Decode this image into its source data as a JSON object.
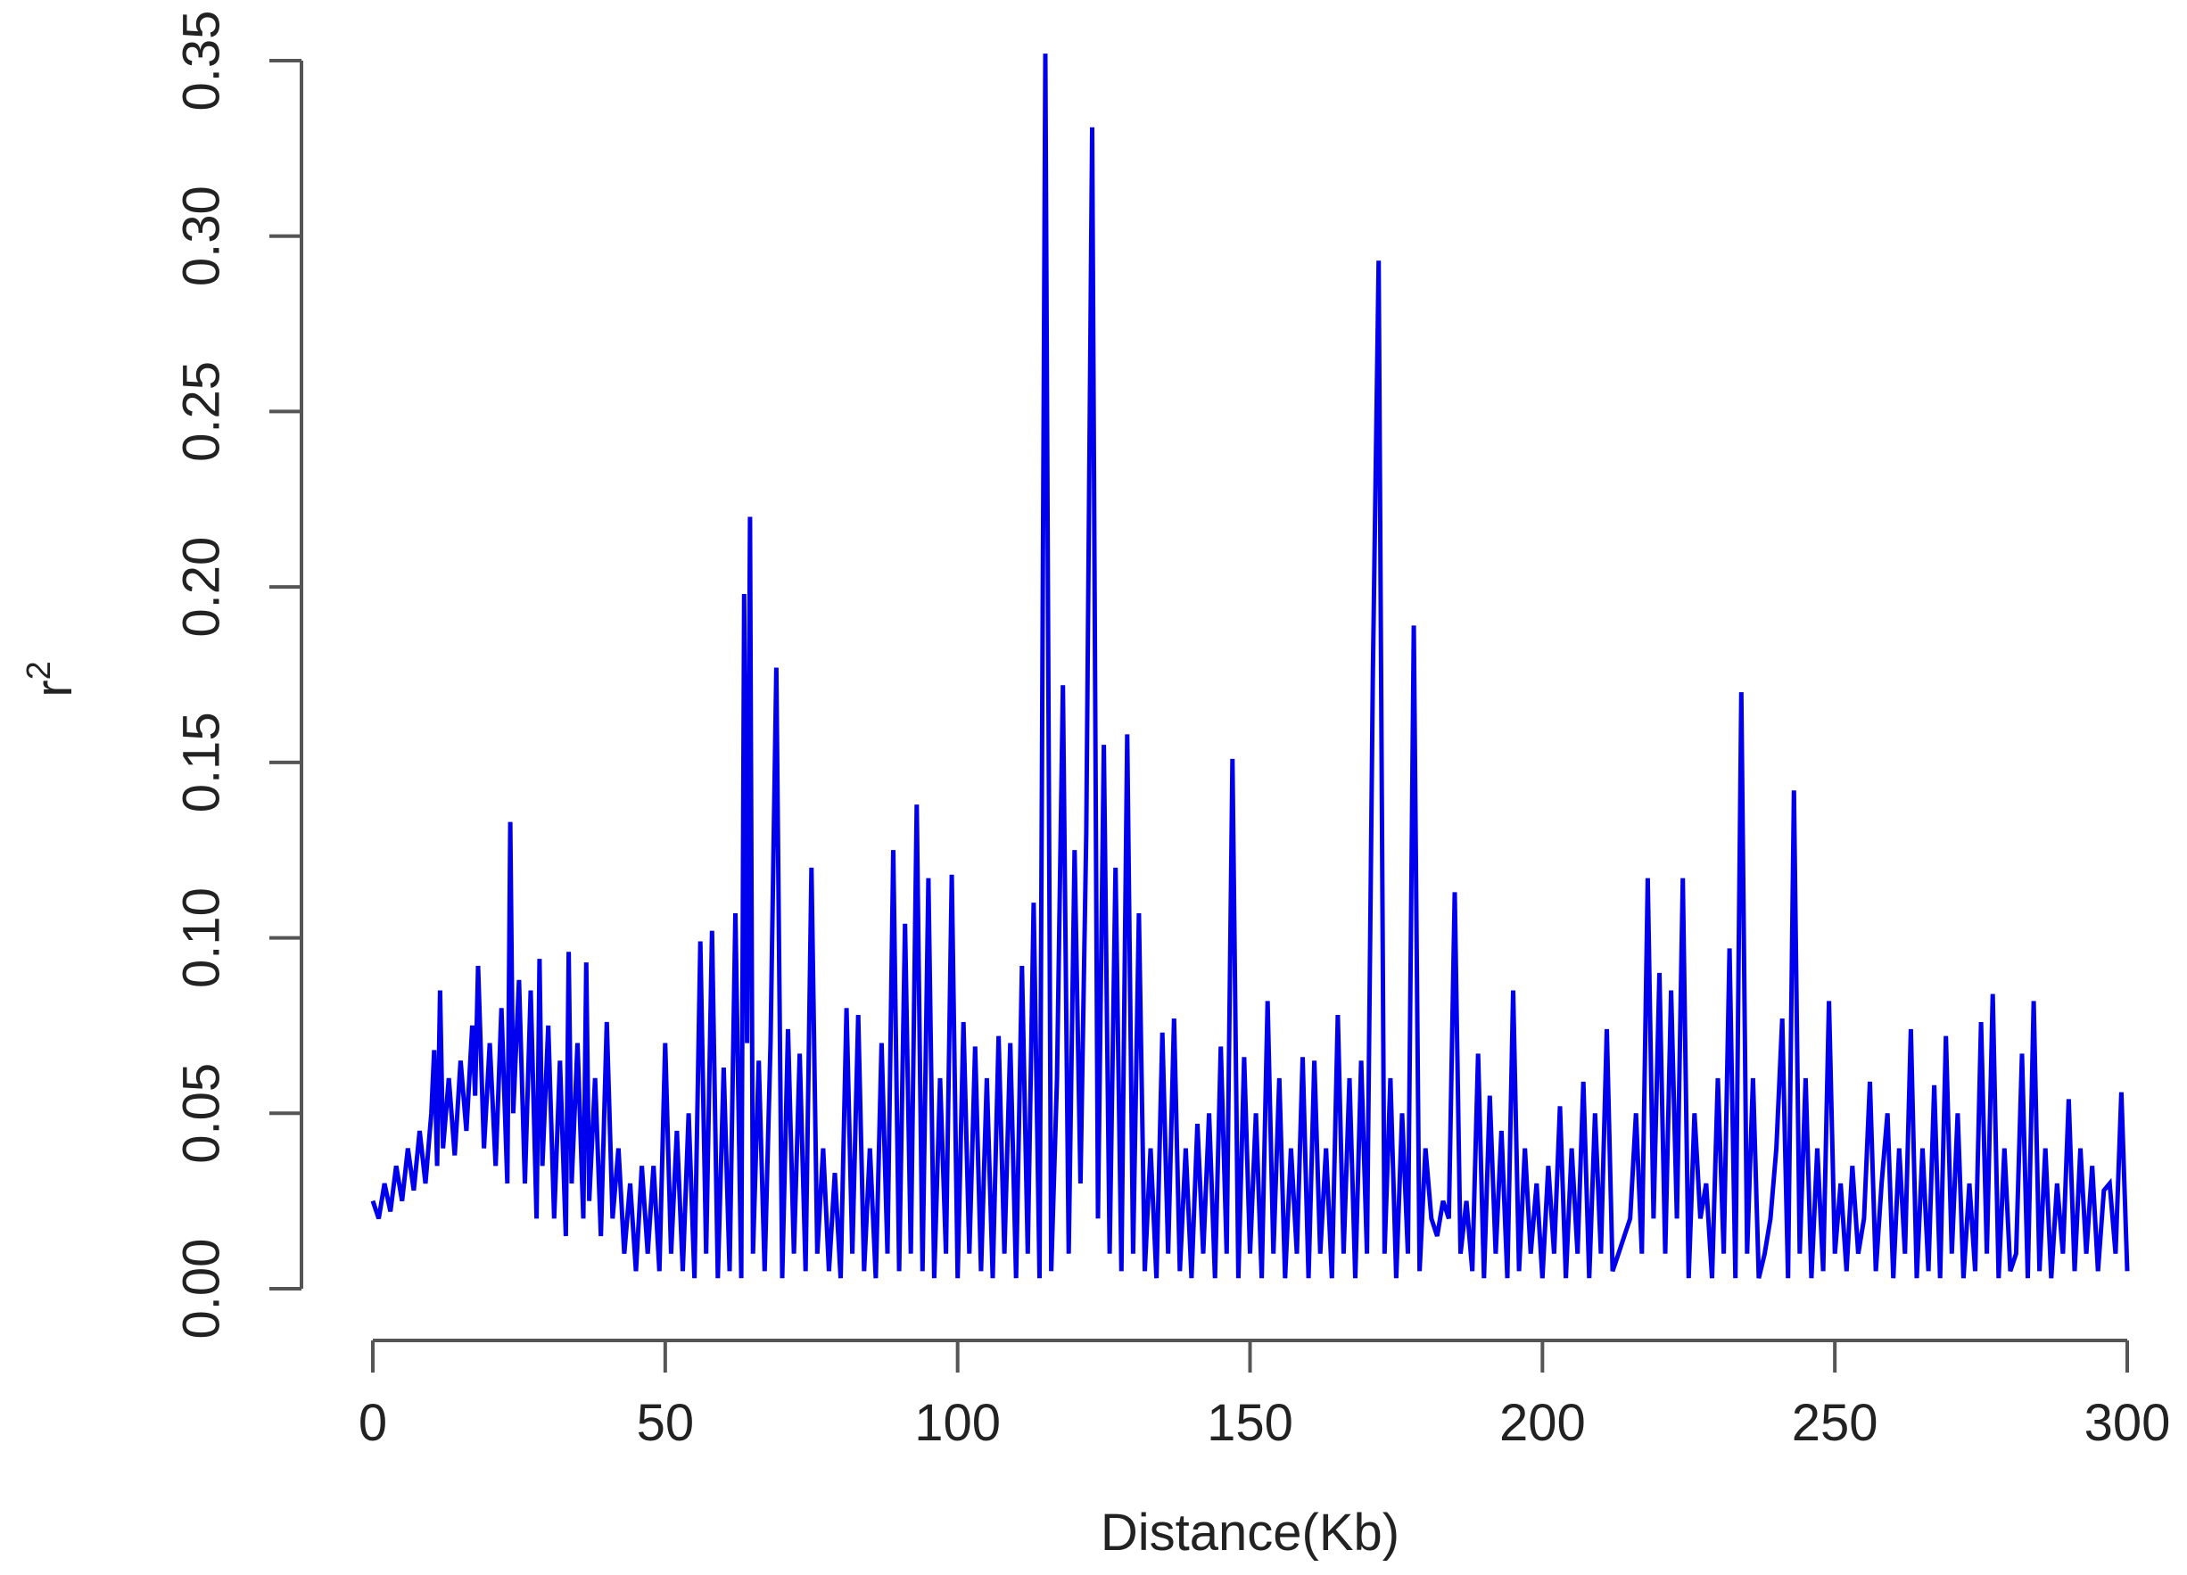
{
  "chart_data": {
    "type": "line",
    "title": "",
    "xlabel": "Distance(Kb)",
    "ylabel": "r",
    "ylabel_superscript": "2",
    "xlim": [
      0,
      300
    ],
    "ylim": [
      0,
      0.35
    ],
    "x_ticks": [
      0,
      50,
      100,
      150,
      200,
      250,
      300
    ],
    "x_tick_labels": [
      "0",
      "50",
      "100",
      "150",
      "200",
      "250",
      "300"
    ],
    "y_ticks": [
      0,
      0.05,
      0.1,
      0.15,
      0.2,
      0.25,
      0.3,
      0.35
    ],
    "y_tick_labels": [
      "0.00",
      "0.05",
      "0.10",
      "0.15",
      "0.20",
      "0.25",
      "0.30",
      "0.35"
    ],
    "grid": false,
    "legend": "none",
    "series": [
      {
        "color": "#0000ee",
        "x": [
          0,
          1,
          2,
          3,
          4,
          5,
          6,
          7,
          8,
          9,
          10,
          10.5,
          11,
          11.5,
          12,
          13,
          14,
          15,
          16,
          17,
          17.5,
          18,
          19,
          20,
          21,
          22,
          23,
          23.5,
          24,
          25,
          26,
          27,
          28,
          28.5,
          29,
          30,
          31,
          32,
          33,
          33.5,
          34,
          35,
          36,
          36.5,
          37,
          38,
          39,
          40,
          41,
          42,
          43,
          44,
          45,
          46,
          47,
          48,
          49,
          50,
          51,
          52,
          53,
          54,
          55,
          56,
          57,
          58,
          59,
          60,
          61,
          62,
          63,
          63.5,
          64,
          64.5,
          65,
          66,
          67,
          68,
          69,
          70,
          71,
          72,
          73,
          74,
          75,
          76,
          77,
          78,
          79,
          80,
          81,
          82,
          83,
          84,
          85,
          86,
          87,
          88,
          89,
          90,
          91,
          92,
          93,
          94,
          95,
          96,
          97,
          98,
          99,
          100,
          101,
          102,
          103,
          104,
          105,
          106,
          107,
          108,
          109,
          110,
          111,
          112,
          113,
          114,
          115,
          116,
          117,
          118,
          119,
          120,
          121,
          122,
          123,
          124,
          125,
          126,
          127,
          128,
          129,
          130,
          131,
          132,
          133,
          134,
          135,
          136,
          137,
          138,
          139,
          140,
          141,
          142,
          143,
          144,
          145,
          146,
          147,
          148,
          149,
          150,
          151,
          152,
          153,
          154,
          155,
          156,
          157,
          158,
          159,
          160,
          161,
          162,
          163,
          164,
          165,
          166,
          167,
          168,
          169,
          170,
          171,
          172,
          173,
          174,
          175,
          176,
          177,
          178,
          179,
          180,
          181,
          182,
          183,
          184,
          185,
          186,
          187,
          188,
          189,
          190,
          191,
          192,
          193,
          194,
          195,
          196,
          197,
          198,
          199,
          200,
          201,
          202,
          203,
          204,
          205,
          206,
          207,
          208,
          209,
          210,
          211,
          212,
          213,
          214,
          215,
          216,
          217,
          218,
          219,
          220,
          221,
          222,
          223,
          224,
          225,
          226,
          227,
          228,
          229,
          230,
          231,
          232,
          233,
          234,
          235,
          236,
          237,
          238,
          239,
          240,
          241,
          242,
          243,
          244,
          245,
          246,
          247,
          248,
          249,
          250,
          251,
          252,
          253,
          254,
          255,
          256,
          257,
          258,
          259,
          260,
          261,
          262,
          263,
          264,
          265,
          266,
          267,
          268,
          269,
          270,
          271,
          272,
          273,
          274,
          275,
          276,
          277,
          278,
          279,
          280,
          281,
          282,
          283,
          284,
          285,
          286,
          287,
          288,
          289,
          290,
          291,
          292,
          293,
          294,
          295,
          296,
          297,
          298,
          299,
          300
        ],
        "y": [
          0.025,
          0.02,
          0.03,
          0.022,
          0.035,
          0.025,
          0.04,
          0.028,
          0.045,
          0.03,
          0.05,
          0.068,
          0.035,
          0.085,
          0.04,
          0.06,
          0.038,
          0.065,
          0.045,
          0.075,
          0.055,
          0.092,
          0.04,
          0.07,
          0.035,
          0.08,
          0.03,
          0.133,
          0.05,
          0.088,
          0.03,
          0.085,
          0.02,
          0.094,
          0.035,
          0.075,
          0.02,
          0.065,
          0.015,
          0.096,
          0.03,
          0.07,
          0.02,
          0.093,
          0.025,
          0.06,
          0.015,
          0.076,
          0.02,
          0.04,
          0.01,
          0.03,
          0.005,
          0.035,
          0.01,
          0.035,
          0.005,
          0.07,
          0.01,
          0.045,
          0.005,
          0.05,
          0.003,
          0.099,
          0.01,
          0.102,
          0.003,
          0.063,
          0.005,
          0.107,
          0.003,
          0.198,
          0.07,
          0.22,
          0.01,
          0.065,
          0.005,
          0.07,
          0.177,
          0.003,
          0.074,
          0.01,
          0.067,
          0.005,
          0.12,
          0.01,
          0.04,
          0.005,
          0.033,
          0.003,
          0.08,
          0.01,
          0.078,
          0.005,
          0.04,
          0.003,
          0.07,
          0.01,
          0.125,
          0.005,
          0.104,
          0.01,
          0.138,
          0.005,
          0.117,
          0.003,
          0.06,
          0.01,
          0.118,
          0.003,
          0.076,
          0.01,
          0.069,
          0.005,
          0.06,
          0.003,
          0.072,
          0.01,
          0.07,
          0.003,
          0.092,
          0.01,
          0.11,
          0.003,
          0.352,
          0.005,
          0.06,
          0.172,
          0.01,
          0.125,
          0.03,
          0.13,
          0.331,
          0.02,
          0.155,
          0.01,
          0.12,
          0.005,
          0.158,
          0.01,
          0.107,
          0.005,
          0.04,
          0.003,
          0.073,
          0.01,
          0.077,
          0.005,
          0.04,
          0.003,
          0.047,
          0.01,
          0.05,
          0.003,
          0.069,
          0.01,
          0.151,
          0.003,
          0.066,
          0.01,
          0.05,
          0.003,
          0.082,
          0.01,
          0.06,
          0.003,
          0.04,
          0.01,
          0.066,
          0.003,
          0.065,
          0.01,
          0.04,
          0.003,
          0.078,
          0.01,
          0.06,
          0.003,
          0.065,
          0.01,
          0.175,
          0.293,
          0.01,
          0.06,
          0.003,
          0.05,
          0.01,
          0.189,
          0.005,
          0.04,
          0.02,
          0.015,
          0.025,
          0.02,
          0.113,
          0.01,
          0.025,
          0.005,
          0.067,
          0.003,
          0.055,
          0.01,
          0.045,
          0.003,
          0.085,
          0.005,
          0.04,
          0.01,
          0.03,
          0.003,
          0.035,
          0.01,
          0.052,
          0.003,
          0.04,
          0.01,
          0.059,
          0.003,
          0.05,
          0.01,
          0.074,
          0.005,
          0.01,
          0.015,
          0.02,
          0.05,
          0.01,
          0.117,
          0.02,
          0.09,
          0.01,
          0.085,
          0.02,
          0.117,
          0.003,
          0.05,
          0.02,
          0.03,
          0.003,
          0.06,
          0.01,
          0.097,
          0.003,
          0.17,
          0.01,
          0.06,
          0.003,
          0.01,
          0.02,
          0.04,
          0.077,
          0.003,
          0.142,
          0.01,
          0.06,
          0.003,
          0.04,
          0.005,
          0.082,
          0.01,
          0.03,
          0.005,
          0.035,
          0.01,
          0.02,
          0.059,
          0.005,
          0.03,
          0.05,
          0.003,
          0.04,
          0.01,
          0.074,
          0.003,
          0.04,
          0.005,
          0.058,
          0.003,
          0.072,
          0.01,
          0.05,
          0.003,
          0.03,
          0.005,
          0.076,
          0.01,
          0.084,
          0.003,
          0.04,
          0.005,
          0.01,
          0.067,
          0.003,
          0.082,
          0.005,
          0.04,
          0.003,
          0.03,
          0.01,
          0.054,
          0.005,
          0.04,
          0.01,
          0.035,
          0.005,
          0.028,
          0.03,
          0.01,
          0.056,
          0.005
        ]
      }
    ]
  }
}
